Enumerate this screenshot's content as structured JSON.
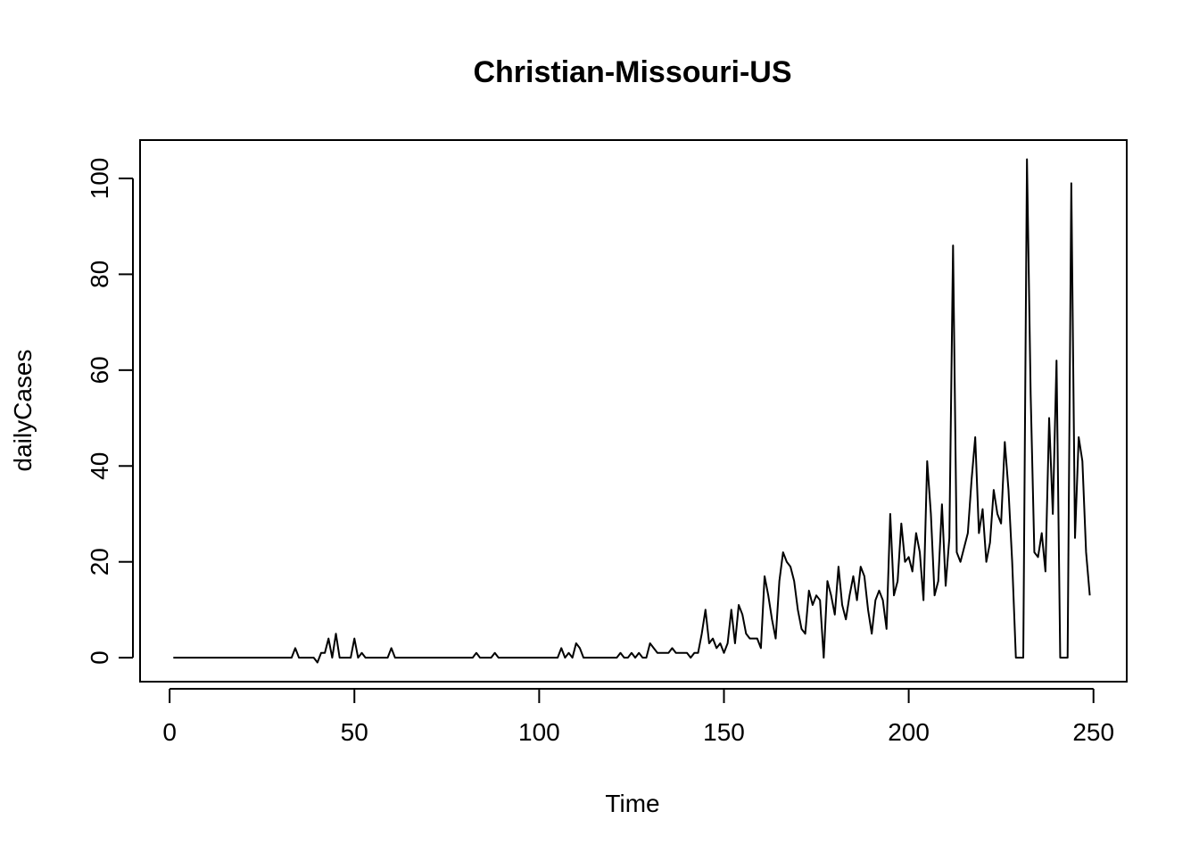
{
  "chart_data": {
    "type": "line",
    "title": "Christian-Missouri-US",
    "xlabel": "Time",
    "ylabel": "dailyCases",
    "xlim": [
      -8,
      259
    ],
    "ylim": [
      -5,
      108
    ],
    "x_ticks": [
      0,
      50,
      100,
      150,
      200,
      250
    ],
    "y_ticks": [
      0,
      20,
      40,
      60,
      80,
      100
    ],
    "grid": false,
    "legend": "none",
    "line_color": "#000000",
    "series": [
      {
        "x_start": 1,
        "values": [
          0,
          0,
          0,
          0,
          0,
          0,
          0,
          0,
          0,
          0,
          0,
          0,
          0,
          0,
          0,
          0,
          0,
          0,
          0,
          0,
          0,
          0,
          0,
          0,
          0,
          0,
          0,
          0,
          0,
          0,
          0,
          0,
          0,
          2,
          0,
          0,
          0,
          0,
          0,
          -1,
          1,
          1,
          4,
          0,
          5,
          0,
          0,
          0,
          0,
          4,
          0,
          1,
          0,
          0,
          0,
          0,
          0,
          0,
          0,
          2,
          0,
          0,
          0,
          0,
          0,
          0,
          0,
          0,
          0,
          0,
          0,
          0,
          0,
          0,
          0,
          0,
          0,
          0,
          0,
          0,
          0,
          0,
          1,
          0,
          0,
          0,
          0,
          1,
          0,
          0,
          0,
          0,
          0,
          0,
          0,
          0,
          0,
          0,
          0,
          0,
          0,
          0,
          0,
          0,
          0,
          2,
          0,
          1,
          0,
          3,
          2,
          0,
          0,
          0,
          0,
          0,
          0,
          0,
          0,
          0,
          0,
          1,
          0,
          0,
          1,
          0,
          1,
          0,
          0,
          3,
          2,
          1,
          1,
          1,
          1,
          2,
          1,
          1,
          1,
          1,
          0,
          1,
          1,
          5,
          10,
          3,
          4,
          2,
          3,
          1,
          3,
          10,
          3,
          11,
          9,
          5,
          4,
          4,
          4,
          2,
          17,
          13,
          8,
          4,
          16,
          22,
          20,
          19,
          16,
          10,
          6,
          5,
          14,
          11,
          13,
          12,
          0,
          16,
          13,
          9,
          19,
          11,
          8,
          13,
          17,
          12,
          19,
          17,
          10,
          5,
          12,
          14,
          12,
          6,
          30,
          13,
          16,
          28,
          20,
          21,
          18,
          26,
          22,
          12,
          41,
          30,
          13,
          16,
          32,
          15,
          25,
          86,
          22,
          20,
          23,
          26,
          37,
          46,
          26,
          31,
          20,
          24,
          35,
          30,
          28,
          45,
          35,
          20,
          0,
          0,
          0,
          104,
          55,
          22,
          21,
          26,
          18,
          50,
          30,
          62,
          0,
          0,
          0,
          99,
          25,
          46,
          41,
          22,
          13
        ]
      }
    ]
  }
}
